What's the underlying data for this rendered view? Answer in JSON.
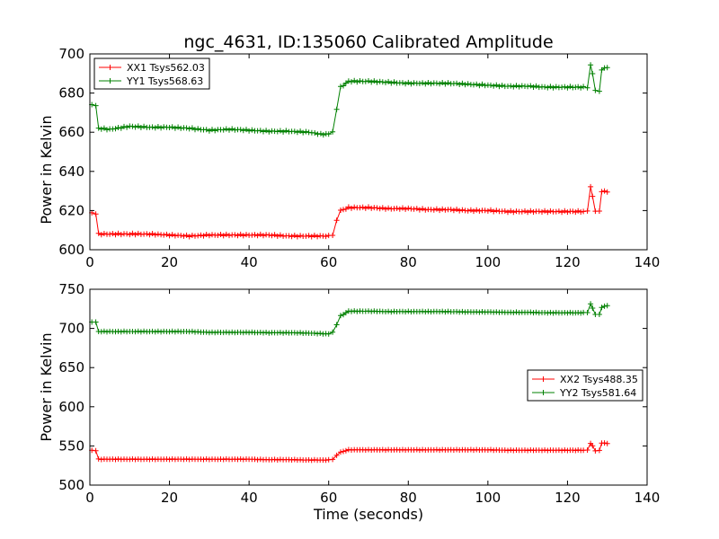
{
  "title": "ngc_4631, ID:135060 Calibrated Amplitude",
  "colors": {
    "xx": "#ff0000",
    "yy": "#008000"
  },
  "chart_data": [
    {
      "type": "line",
      "title": "ngc_4631, ID:135060 Calibrated Amplitude",
      "xlabel": "",
      "ylabel": "Power in Kelvin",
      "xlim": [
        0,
        140
      ],
      "ylim": [
        600,
        700
      ],
      "xticks": [
        "0",
        "20",
        "40",
        "60",
        "80",
        "100",
        "120",
        "140"
      ],
      "yticks": [
        "600",
        "620",
        "640",
        "660",
        "680",
        "700"
      ],
      "legend_position": "top-left",
      "marker": "plus",
      "series": [
        {
          "name": "XX1 Tsys562.03",
          "color": "#ff0000",
          "points": [
            [
              0.5,
              618.5
            ],
            [
              1.5,
              618.5
            ],
            [
              2.2,
              608
            ],
            [
              5,
              608
            ],
            [
              10,
              608
            ],
            [
              15,
              608
            ],
            [
              20,
              607.5
            ],
            [
              25,
              607
            ],
            [
              30,
              607.5
            ],
            [
              35,
              607.5
            ],
            [
              40,
              607.5
            ],
            [
              45,
              607.5
            ],
            [
              50,
              607
            ],
            [
              55,
              607
            ],
            [
              60,
              607
            ],
            [
              61,
              607.5
            ],
            [
              62,
              615
            ],
            [
              63,
              620
            ],
            [
              65,
              621.5
            ],
            [
              70,
              621.5
            ],
            [
              75,
              621
            ],
            [
              80,
              621
            ],
            [
              85,
              620.5
            ],
            [
              90,
              620.5
            ],
            [
              95,
              620
            ],
            [
              100,
              620
            ],
            [
              105,
              619.5
            ],
            [
              110,
              619.5
            ],
            [
              115,
              619.5
            ],
            [
              120,
              619.5
            ],
            [
              124,
              619.5
            ],
            [
              125,
              620
            ],
            [
              125.8,
              632
            ],
            [
              126.3,
              627
            ],
            [
              127,
              620
            ],
            [
              128,
              619.5
            ],
            [
              128.6,
              630
            ],
            [
              130,
              629.5
            ]
          ]
        },
        {
          "name": "YY1 Tsys568.63",
          "color": "#008000",
          "points": [
            [
              0.5,
              674
            ],
            [
              1.5,
              673.5
            ],
            [
              2.2,
              662
            ],
            [
              5,
              661.5
            ],
            [
              10,
              663
            ],
            [
              15,
              662.5
            ],
            [
              20,
              662.5
            ],
            [
              25,
              662
            ],
            [
              30,
              661
            ],
            [
              35,
              661.5
            ],
            [
              40,
              661
            ],
            [
              45,
              660.5
            ],
            [
              50,
              660.5
            ],
            [
              55,
              660
            ],
            [
              58,
              659
            ],
            [
              60,
              659
            ],
            [
              61,
              660
            ],
            [
              62,
              672
            ],
            [
              63,
              683
            ],
            [
              65,
              686
            ],
            [
              70,
              686
            ],
            [
              75,
              685.5
            ],
            [
              80,
              685
            ],
            [
              85,
              685
            ],
            [
              90,
              685
            ],
            [
              95,
              684.5
            ],
            [
              100,
              684
            ],
            [
              105,
              683.5
            ],
            [
              110,
              683.5
            ],
            [
              115,
              683
            ],
            [
              120,
              683
            ],
            [
              124,
              683
            ],
            [
              125,
              683
            ],
            [
              125.8,
              694
            ],
            [
              126.3,
              690
            ],
            [
              127,
              681.5
            ],
            [
              128,
              681
            ],
            [
              128.6,
              692
            ],
            [
              130,
              693
            ]
          ]
        }
      ]
    },
    {
      "type": "line",
      "title": "",
      "xlabel": "Time (seconds)",
      "ylabel": "Power in Kelvin",
      "xlim": [
        0,
        140
      ],
      "ylim": [
        500,
        750
      ],
      "xticks": [
        "0",
        "20",
        "40",
        "60",
        "80",
        "100",
        "120",
        "140"
      ],
      "yticks": [
        "500",
        "550",
        "600",
        "650",
        "700",
        "750"
      ],
      "legend_position": "center-right",
      "marker": "plus",
      "series": [
        {
          "name": "XX2 Tsys488.35",
          "color": "#ff0000",
          "points": [
            [
              0.5,
              544
            ],
            [
              1.5,
              544
            ],
            [
              2.2,
              533
            ],
            [
              5,
              533
            ],
            [
              10,
              533
            ],
            [
              15,
              533
            ],
            [
              20,
              533
            ],
            [
              25,
              533
            ],
            [
              30,
              533
            ],
            [
              35,
              533
            ],
            [
              40,
              533
            ],
            [
              45,
              532.5
            ],
            [
              50,
              532.5
            ],
            [
              55,
              532
            ],
            [
              60,
              532
            ],
            [
              61,
              533
            ],
            [
              62,
              538
            ],
            [
              63,
              542
            ],
            [
              65,
              545
            ],
            [
              70,
              545
            ],
            [
              75,
              545
            ],
            [
              80,
              545
            ],
            [
              85,
              545
            ],
            [
              90,
              545
            ],
            [
              95,
              545
            ],
            [
              100,
              545
            ],
            [
              105,
              544.5
            ],
            [
              110,
              544.5
            ],
            [
              115,
              544.5
            ],
            [
              120,
              544.5
            ],
            [
              124,
              544.5
            ],
            [
              125,
              545
            ],
            [
              125.8,
              553
            ],
            [
              126.3,
              550
            ],
            [
              127,
              544
            ],
            [
              128,
              544
            ],
            [
              128.6,
              554
            ],
            [
              130,
              553
            ]
          ]
        },
        {
          "name": "YY2 Tsys581.64",
          "color": "#008000",
          "points": [
            [
              0.5,
              708
            ],
            [
              1.5,
              708
            ],
            [
              2.2,
              696
            ],
            [
              5,
              696
            ],
            [
              10,
              696
            ],
            [
              15,
              696
            ],
            [
              20,
              696
            ],
            [
              25,
              696
            ],
            [
              30,
              695
            ],
            [
              35,
              695
            ],
            [
              40,
              695
            ],
            [
              45,
              694.5
            ],
            [
              50,
              694.5
            ],
            [
              55,
              694
            ],
            [
              60,
              693
            ],
            [
              61,
              695
            ],
            [
              62,
              705
            ],
            [
              63,
              716
            ],
            [
              65,
              722
            ],
            [
              70,
              722
            ],
            [
              75,
              721.5
            ],
            [
              80,
              721.5
            ],
            [
              85,
              721.5
            ],
            [
              90,
              721.5
            ],
            [
              95,
              721
            ],
            [
              100,
              721
            ],
            [
              105,
              720.5
            ],
            [
              110,
              720.5
            ],
            [
              115,
              720
            ],
            [
              120,
              720
            ],
            [
              124,
              720
            ],
            [
              125,
              720.5
            ],
            [
              125.8,
              731
            ],
            [
              126.3,
              726
            ],
            [
              127,
              718
            ],
            [
              128,
              718
            ],
            [
              128.6,
              727
            ],
            [
              130,
              729
            ]
          ]
        }
      ]
    }
  ]
}
